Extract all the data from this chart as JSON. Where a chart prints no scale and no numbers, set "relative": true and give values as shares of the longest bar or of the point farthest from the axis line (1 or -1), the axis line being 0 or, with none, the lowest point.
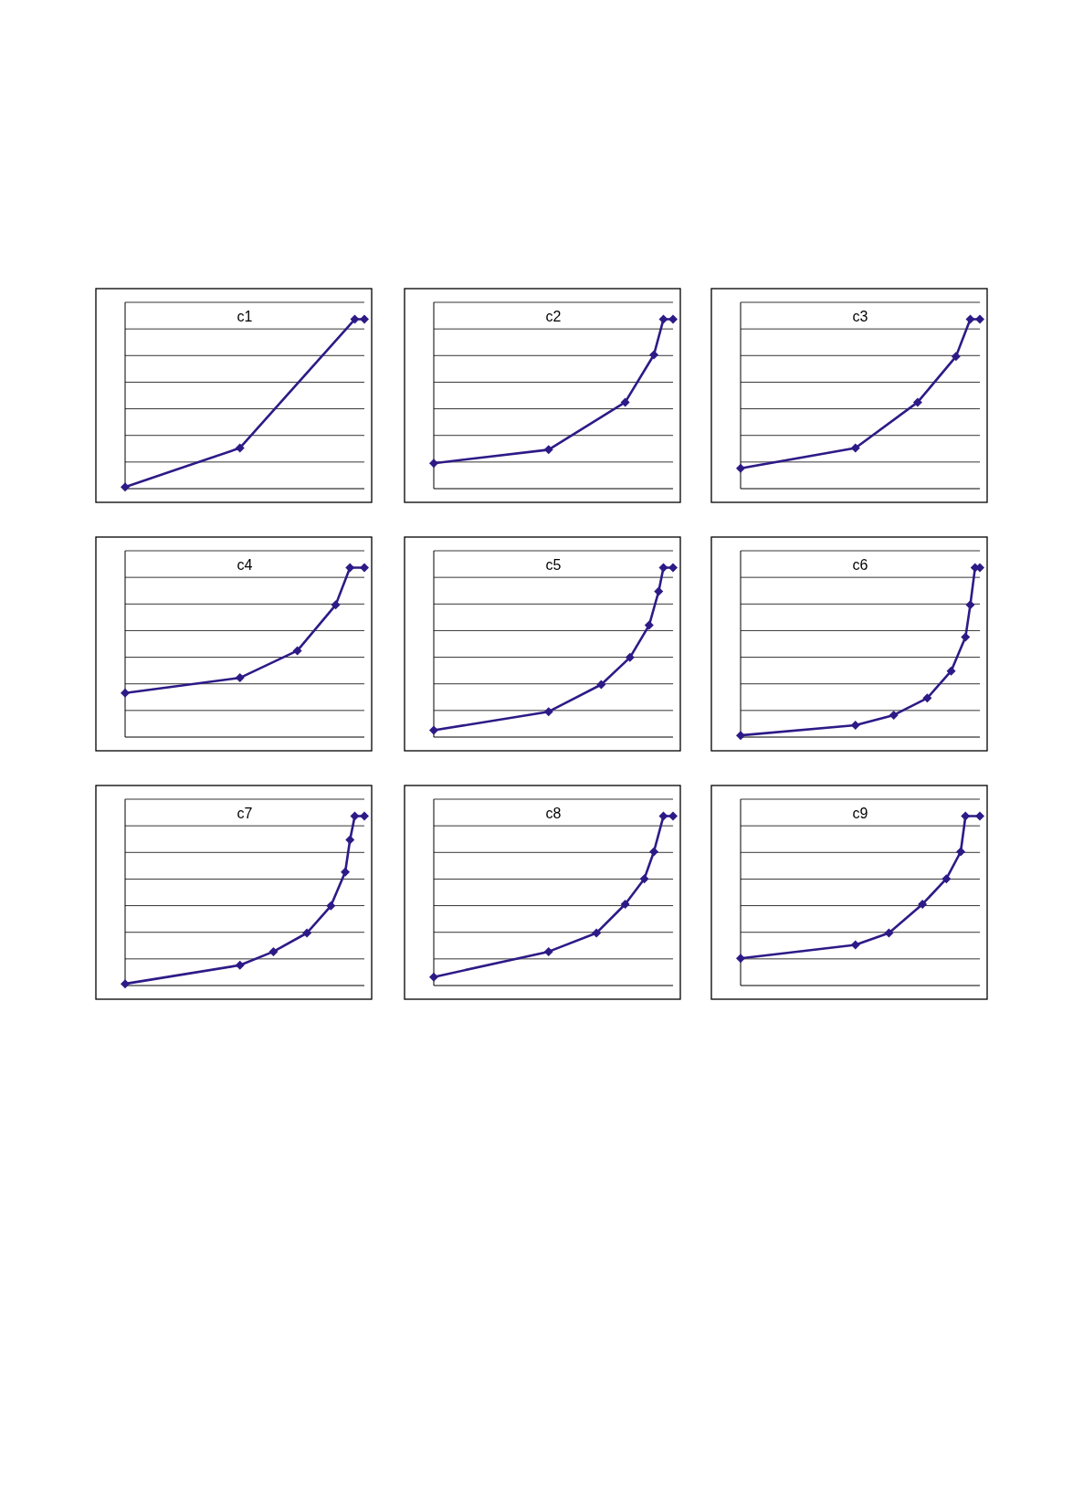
{
  "chart_data": [
    {
      "type": "line",
      "title": "c1",
      "relative": true,
      "grid": "y",
      "marker": "diamond",
      "line_style": "solid",
      "categories": [
        null,
        null,
        null,
        null,
        null,
        null,
        null,
        null,
        null,
        null,
        null,
        null,
        null,
        null,
        null,
        null,
        null,
        null,
        null,
        null,
        null,
        null,
        null,
        null,
        null,
        null,
        null,
        null,
        null,
        null,
        null,
        null,
        null,
        null,
        null,
        null,
        null,
        null,
        null,
        null,
        null,
        null,
        null,
        null,
        null,
        null,
        null,
        null,
        null,
        null,
        null
      ],
      "series": [
        {
          "color": "#2e1a87",
          "values": [
            0.01,
            null,
            null,
            null,
            null,
            null,
            null,
            null,
            null,
            null,
            null,
            null,
            null,
            null,
            null,
            null,
            null,
            null,
            null,
            null,
            null,
            null,
            null,
            null,
            0.24,
            null,
            null,
            null,
            null,
            null,
            null,
            null,
            null,
            null,
            null,
            null,
            null,
            null,
            null,
            null,
            null,
            null,
            null,
            null,
            null,
            null,
            null,
            null,
            1,
            null,
            1
          ]
        }
      ]
    },
    {
      "type": "line",
      "title": "c2",
      "relative": true,
      "grid": "y",
      "marker": "diamond",
      "line_style": "solid",
      "categories": [
        null,
        null,
        null,
        null,
        null,
        null,
        null,
        null,
        null,
        null,
        null,
        null,
        null,
        null,
        null,
        null,
        null,
        null,
        null,
        null,
        null,
        null,
        null,
        null,
        null,
        null,
        null,
        null,
        null,
        null,
        null,
        null,
        null,
        null,
        null,
        null,
        null,
        null,
        null,
        null,
        null,
        null,
        null,
        null,
        null,
        null,
        null,
        null,
        null,
        null,
        null
      ],
      "series": [
        {
          "color": "#2e1a87",
          "values": [
            0.15,
            null,
            null,
            null,
            null,
            null,
            null,
            null,
            null,
            null,
            null,
            null,
            null,
            null,
            null,
            null,
            null,
            null,
            null,
            null,
            null,
            null,
            null,
            null,
            0.23,
            null,
            null,
            null,
            null,
            null,
            null,
            null,
            null,
            null,
            null,
            null,
            null,
            null,
            null,
            null,
            0.51,
            null,
            null,
            null,
            null,
            null,
            0.79,
            null,
            1,
            null,
            1
          ]
        }
      ]
    },
    {
      "type": "line",
      "title": "c3",
      "relative": true,
      "grid": "y",
      "marker": "diamond",
      "line_style": "solid",
      "categories": [
        null,
        null,
        null,
        null,
        null,
        null,
        null,
        null,
        null,
        null,
        null,
        null,
        null,
        null,
        null,
        null,
        null,
        null,
        null,
        null,
        null,
        null,
        null,
        null,
        null,
        null,
        null,
        null,
        null,
        null,
        null,
        null,
        null,
        null,
        null,
        null,
        null,
        null,
        null,
        null,
        null,
        null,
        null,
        null,
        null,
        null,
        null,
        null,
        null,
        null,
        null
      ],
      "series": [
        {
          "color": "#2e1a87",
          "values": [
            0.12,
            null,
            null,
            null,
            null,
            null,
            null,
            null,
            null,
            null,
            null,
            null,
            null,
            null,
            null,
            null,
            null,
            null,
            null,
            null,
            null,
            null,
            null,
            null,
            0.24,
            null,
            null,
            null,
            null,
            null,
            null,
            null,
            null,
            null,
            null,
            null,
            null,
            0.51,
            null,
            null,
            null,
            null,
            null,
            null,
            null,
            0.78,
            null,
            null,
            1,
            null,
            1
          ]
        }
      ]
    },
    {
      "type": "line",
      "title": "c4",
      "relative": true,
      "grid": "y",
      "marker": "diamond",
      "line_style": "solid",
      "categories": [
        null,
        null,
        null,
        null,
        null,
        null,
        null,
        null,
        null,
        null,
        null,
        null,
        null,
        null,
        null,
        null,
        null,
        null,
        null,
        null,
        null,
        null,
        null,
        null,
        null,
        null,
        null,
        null,
        null,
        null,
        null,
        null,
        null,
        null,
        null,
        null,
        null,
        null,
        null,
        null,
        null,
        null,
        null,
        null,
        null,
        null,
        null,
        null,
        null,
        null,
        null
      ],
      "series": [
        {
          "color": "#2e1a87",
          "values": [
            0.26,
            null,
            null,
            null,
            null,
            null,
            null,
            null,
            null,
            null,
            null,
            null,
            null,
            null,
            null,
            null,
            null,
            null,
            null,
            null,
            null,
            null,
            null,
            null,
            0.35,
            null,
            null,
            null,
            null,
            null,
            null,
            null,
            null,
            null,
            null,
            null,
            0.51,
            null,
            null,
            null,
            null,
            null,
            null,
            null,
            0.78,
            null,
            null,
            1,
            null,
            null,
            1
          ]
        }
      ]
    },
    {
      "type": "line",
      "title": "c5",
      "relative": true,
      "grid": "y",
      "marker": "diamond",
      "line_style": "solid",
      "categories": [
        null,
        null,
        null,
        null,
        null,
        null,
        null,
        null,
        null,
        null,
        null,
        null,
        null,
        null,
        null,
        null,
        null,
        null,
        null,
        null,
        null,
        null,
        null,
        null,
        null,
        null,
        null,
        null,
        null,
        null,
        null,
        null,
        null,
        null,
        null,
        null,
        null,
        null,
        null,
        null,
        null,
        null,
        null,
        null,
        null,
        null,
        null,
        null,
        null,
        null,
        null
      ],
      "series": [
        {
          "color": "#2e1a87",
          "values": [
            0.04,
            null,
            null,
            null,
            null,
            null,
            null,
            null,
            null,
            null,
            null,
            null,
            null,
            null,
            null,
            null,
            null,
            null,
            null,
            null,
            null,
            null,
            null,
            null,
            0.15,
            null,
            null,
            null,
            null,
            null,
            null,
            null,
            null,
            null,
            null,
            0.31,
            null,
            null,
            null,
            null,
            null,
            0.47,
            null,
            null,
            null,
            0.66,
            null,
            0.86,
            1,
            null,
            1
          ]
        }
      ]
    },
    {
      "type": "line",
      "title": "c6",
      "relative": true,
      "grid": "y",
      "marker": "diamond",
      "line_style": "solid",
      "categories": [
        null,
        null,
        null,
        null,
        null,
        null,
        null,
        null,
        null,
        null,
        null,
        null,
        null,
        null,
        null,
        null,
        null,
        null,
        null,
        null,
        null,
        null,
        null,
        null,
        null,
        null,
        null,
        null,
        null,
        null,
        null,
        null,
        null,
        null,
        null,
        null,
        null,
        null,
        null,
        null,
        null,
        null,
        null,
        null,
        null,
        null,
        null,
        null,
        null,
        null,
        null
      ],
      "series": [
        {
          "color": "#2e1a87",
          "values": [
            0.01,
            null,
            null,
            null,
            null,
            null,
            null,
            null,
            null,
            null,
            null,
            null,
            null,
            null,
            null,
            null,
            null,
            null,
            null,
            null,
            null,
            null,
            null,
            null,
            0.07,
            null,
            null,
            null,
            null,
            null,
            null,
            null,
            0.13,
            null,
            null,
            null,
            null,
            null,
            null,
            0.23,
            null,
            null,
            null,
            null,
            0.39,
            null,
            null,
            0.59,
            0.78,
            1,
            1
          ]
        }
      ]
    },
    {
      "type": "line",
      "title": "c7",
      "relative": true,
      "grid": "y",
      "marker": "diamond",
      "line_style": "solid",
      "categories": [
        null,
        null,
        null,
        null,
        null,
        null,
        null,
        null,
        null,
        null,
        null,
        null,
        null,
        null,
        null,
        null,
        null,
        null,
        null,
        null,
        null,
        null,
        null,
        null,
        null,
        null,
        null,
        null,
        null,
        null,
        null,
        null,
        null,
        null,
        null,
        null,
        null,
        null,
        null,
        null,
        null,
        null,
        null,
        null,
        null,
        null,
        null,
        null,
        null,
        null,
        null
      ],
      "series": [
        {
          "color": "#2e1a87",
          "values": [
            0.01,
            null,
            null,
            null,
            null,
            null,
            null,
            null,
            null,
            null,
            null,
            null,
            null,
            null,
            null,
            null,
            null,
            null,
            null,
            null,
            null,
            null,
            null,
            null,
            0.12,
            null,
            null,
            null,
            null,
            null,
            null,
            0.2,
            null,
            null,
            null,
            null,
            null,
            null,
            0.31,
            null,
            null,
            null,
            null,
            0.47,
            null,
            null,
            0.67,
            0.86,
            1,
            null,
            1
          ]
        }
      ]
    },
    {
      "type": "line",
      "title": "c8",
      "relative": true,
      "grid": "y",
      "marker": "diamond",
      "line_style": "solid",
      "categories": [
        null,
        null,
        null,
        null,
        null,
        null,
        null,
        null,
        null,
        null,
        null,
        null,
        null,
        null,
        null,
        null,
        null,
        null,
        null,
        null,
        null,
        null,
        null,
        null,
        null,
        null,
        null,
        null,
        null,
        null,
        null,
        null,
        null,
        null,
        null,
        null,
        null,
        null,
        null,
        null,
        null,
        null,
        null,
        null,
        null,
        null,
        null,
        null,
        null,
        null,
        null
      ],
      "series": [
        {
          "color": "#2e1a87",
          "values": [
            0.05,
            null,
            null,
            null,
            null,
            null,
            null,
            null,
            null,
            null,
            null,
            null,
            null,
            null,
            null,
            null,
            null,
            null,
            null,
            null,
            null,
            null,
            null,
            null,
            0.2,
            null,
            null,
            null,
            null,
            null,
            null,
            null,
            null,
            null,
            0.31,
            null,
            null,
            null,
            null,
            null,
            0.48,
            null,
            null,
            null,
            0.63,
            null,
            0.79,
            null,
            1,
            null,
            1
          ]
        }
      ]
    },
    {
      "type": "line",
      "title": "c9",
      "relative": true,
      "grid": "y",
      "marker": "diamond",
      "line_style": "solid",
      "categories": [
        null,
        null,
        null,
        null,
        null,
        null,
        null,
        null,
        null,
        null,
        null,
        null,
        null,
        null,
        null,
        null,
        null,
        null,
        null,
        null,
        null,
        null,
        null,
        null,
        null,
        null,
        null,
        null,
        null,
        null,
        null,
        null,
        null,
        null,
        null,
        null,
        null,
        null,
        null,
        null,
        null,
        null,
        null,
        null,
        null,
        null,
        null,
        null,
        null,
        null,
        null
      ],
      "series": [
        {
          "color": "#2e1a87",
          "values": [
            0.16,
            null,
            null,
            null,
            null,
            null,
            null,
            null,
            null,
            null,
            null,
            null,
            null,
            null,
            null,
            null,
            null,
            null,
            null,
            null,
            null,
            null,
            null,
            null,
            0.24,
            null,
            null,
            null,
            null,
            null,
            null,
            0.31,
            null,
            null,
            null,
            null,
            null,
            null,
            0.48,
            null,
            null,
            null,
            null,
            0.63,
            null,
            null,
            0.79,
            1,
            null,
            null,
            1
          ]
        }
      ]
    }
  ]
}
